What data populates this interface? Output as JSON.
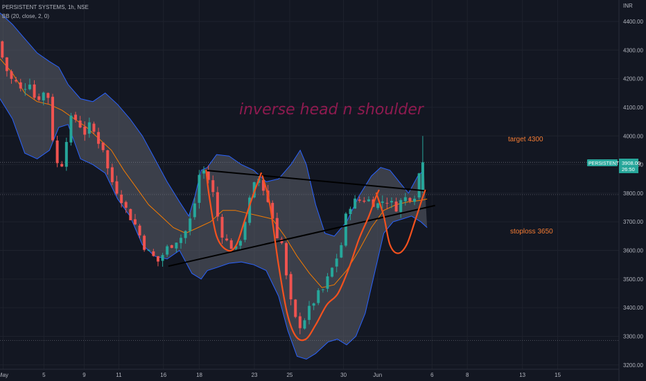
{
  "header": {
    "symbol_title": "PERSISTENT SYSTEMS, 1h, NSE",
    "indicator_title": "BB (20, close, 2, 0)"
  },
  "currency": "INR",
  "price_label": {
    "ticker": "PERSISTENT",
    "price": "3908.00",
    "countdown": "26:50"
  },
  "annotations": {
    "headline": "inverse head n shoulder",
    "target": "target 4300",
    "stoploss": "stoploss 3650"
  },
  "colors": {
    "background": "#131722",
    "up": "#26a69a",
    "down": "#ef5350",
    "bb_fill": "#5d606b",
    "bb_band": "#2962ff",
    "bb_basis": "#f57c00",
    "pattern": "#f4511e",
    "headline": "#8e1a4f",
    "annotation": "#f57c33",
    "trendline": "#000000"
  },
  "chart_data": {
    "type": "candlestick",
    "title": "PERSISTENT SYSTEMS, 1h, NSE",
    "indicator": "BB (20, close, 2, 0)",
    "y_unit": "INR",
    "ylim": [
      3185,
      4475
    ],
    "yticks": [
      3200,
      3300,
      3400,
      3500,
      3600,
      3700,
      3800,
      3900,
      4000,
      4100,
      4200,
      4300,
      4400
    ],
    "xlim": [
      0,
      100
    ],
    "xticks": [
      {
        "label": "May",
        "x": 0.5
      },
      {
        "label": "5",
        "x": 7.1
      },
      {
        "label": "9",
        "x": 13.6
      },
      {
        "label": "11",
        "x": 19.2
      },
      {
        "label": "16",
        "x": 26.4
      },
      {
        "label": "18",
        "x": 32.2
      },
      {
        "label": "23",
        "x": 41.1
      },
      {
        "label": "25",
        "x": 46.8
      },
      {
        "label": "30",
        "x": 55.5
      },
      {
        "label": "Jun",
        "x": 61.0
      },
      {
        "label": "6",
        "x": 69.8
      },
      {
        "label": "8",
        "x": 75.5
      },
      {
        "label": "13",
        "x": 84.4
      },
      {
        "label": "15",
        "x": 90.1
      }
    ],
    "grid": true,
    "close_keypoints": [
      [
        0,
        4330
      ],
      [
        1,
        4255
      ],
      [
        2,
        4200
      ],
      [
        3,
        4185
      ],
      [
        4,
        4150
      ],
      [
        5,
        4205
      ],
      [
        6,
        4130
      ],
      [
        7,
        4140
      ],
      [
        8,
        4165
      ],
      [
        9,
        3970
      ],
      [
        10,
        3860
      ],
      [
        11,
        3985
      ],
      [
        12,
        4070
      ],
      [
        13,
        4050
      ],
      [
        14,
        4010
      ],
      [
        15,
        4040
      ],
      [
        16,
        3990
      ],
      [
        17,
        3960
      ],
      [
        18,
        3860
      ],
      [
        19,
        3820
      ],
      [
        20,
        3780
      ],
      [
        21,
        3730
      ],
      [
        22,
        3700
      ],
      [
        23,
        3650
      ],
      [
        24,
        3600
      ],
      [
        25,
        3580
      ],
      [
        26,
        3560
      ],
      [
        27,
        3600
      ],
      [
        28,
        3620
      ],
      [
        29,
        3640
      ],
      [
        30,
        3650
      ],
      [
        31,
        3700
      ],
      [
        32,
        3780
      ],
      [
        32.8,
        3900
      ],
      [
        33.5,
        3870
      ],
      [
        34.5,
        3830
      ],
      [
        35.5,
        3720
      ],
      [
        36.5,
        3640
      ],
      [
        37.5,
        3620
      ],
      [
        38.5,
        3600
      ],
      [
        39.5,
        3660
      ],
      [
        40.5,
        3760
      ],
      [
        41.5,
        3830
      ],
      [
        42,
        3860
      ],
      [
        43,
        3810
      ],
      [
        44,
        3750
      ],
      [
        45,
        3660
      ],
      [
        46,
        3620
      ],
      [
        46.5,
        3520
      ],
      [
        47.5,
        3400
      ],
      [
        48.5,
        3330
      ],
      [
        49.5,
        3360
      ],
      [
        50.5,
        3400
      ],
      [
        51.5,
        3440
      ],
      [
        52.5,
        3460
      ],
      [
        53.5,
        3510
      ],
      [
        54.5,
        3560
      ],
      [
        55.5,
        3620
      ],
      [
        56.5,
        3750
      ],
      [
        57.5,
        3770
      ],
      [
        58.5,
        3775
      ],
      [
        59.5,
        3780
      ],
      [
        60.5,
        3770
      ],
      [
        61.5,
        3760
      ],
      [
        62.5,
        3780
      ],
      [
        63.5,
        3770
      ],
      [
        64,
        3740
      ],
      [
        65,
        3770
      ],
      [
        66,
        3785
      ],
      [
        67,
        3790
      ],
      [
        67.7,
        3800
      ],
      [
        68.3,
        3908
      ]
    ],
    "last_candle": {
      "x": 68.3,
      "open": 3810,
      "high": 4000,
      "low": 3800,
      "close": 3908
    },
    "bollinger": {
      "upper": [
        [
          0,
          4430
        ],
        [
          2,
          4390
        ],
        [
          4,
          4340
        ],
        [
          6,
          4290
        ],
        [
          8,
          4260
        ],
        [
          9.5,
          4240
        ],
        [
          11,
          4180
        ],
        [
          13,
          4130
        ],
        [
          15,
          4120
        ],
        [
          17,
          4150
        ],
        [
          19,
          4110
        ],
        [
          21,
          4060
        ],
        [
          23,
          4000
        ],
        [
          25,
          3920
        ],
        [
          27,
          3840
        ],
        [
          29,
          3770
        ],
        [
          30.5,
          3720
        ],
        [
          31.5,
          3790
        ],
        [
          32.5,
          3880
        ],
        [
          33.5,
          3890
        ],
        [
          35,
          3935
        ],
        [
          37,
          3930
        ],
        [
          39,
          3900
        ],
        [
          41,
          3880
        ],
        [
          43,
          3840
        ],
        [
          45,
          3850
        ],
        [
          47,
          3900
        ],
        [
          48.5,
          3950
        ],
        [
          49.5,
          3900
        ],
        [
          51,
          3760
        ],
        [
          52.5,
          3660
        ],
        [
          54,
          3650
        ],
        [
          56,
          3700
        ],
        [
          58,
          3790
        ],
        [
          60,
          3860
        ],
        [
          61.5,
          3890
        ],
        [
          63,
          3880
        ],
        [
          64.5,
          3840
        ],
        [
          66,
          3800
        ],
        [
          67.5,
          3860
        ],
        [
          68.5,
          3880
        ]
      ],
      "lower": [
        [
          0,
          4130
        ],
        [
          2,
          4060
        ],
        [
          4,
          3940
        ],
        [
          6,
          3920
        ],
        [
          8,
          3950
        ],
        [
          9.5,
          4030
        ],
        [
          11,
          4040
        ],
        [
          13,
          3920
        ],
        [
          15,
          3900
        ],
        [
          17,
          3870
        ],
        [
          19,
          3780
        ],
        [
          21,
          3720
        ],
        [
          23,
          3620
        ],
        [
          25,
          3580
        ],
        [
          27,
          3570
        ],
        [
          29,
          3600
        ],
        [
          31,
          3520
        ],
        [
          32.5,
          3500
        ],
        [
          33.5,
          3530
        ],
        [
          35,
          3540
        ],
        [
          37,
          3555
        ],
        [
          39,
          3560
        ],
        [
          41,
          3550
        ],
        [
          43,
          3530
        ],
        [
          45,
          3440
        ],
        [
          46.5,
          3320
        ],
        [
          48,
          3230
        ],
        [
          49.5,
          3220
        ],
        [
          51,
          3240
        ],
        [
          53,
          3280
        ],
        [
          54.5,
          3290
        ],
        [
          56,
          3270
        ],
        [
          57.5,
          3300
        ],
        [
          59,
          3380
        ],
        [
          60.5,
          3520
        ],
        [
          62,
          3660
        ],
        [
          63.5,
          3700
        ],
        [
          65,
          3710
        ],
        [
          66.5,
          3720
        ],
        [
          68,
          3700
        ],
        [
          69,
          3680
        ]
      ],
      "basis": [
        [
          0,
          4270
        ],
        [
          2,
          4220
        ],
        [
          4,
          4150
        ],
        [
          6,
          4120
        ],
        [
          8,
          4110
        ],
        [
          10,
          4090
        ],
        [
          12,
          4060
        ],
        [
          14,
          4030
        ],
        [
          16,
          3990
        ],
        [
          18,
          3950
        ],
        [
          20,
          3880
        ],
        [
          22,
          3820
        ],
        [
          24,
          3760
        ],
        [
          26,
          3720
        ],
        [
          28,
          3680
        ],
        [
          30,
          3660
        ],
        [
          32,
          3680
        ],
        [
          34,
          3700
        ],
        [
          36,
          3740
        ],
        [
          38,
          3740
        ],
        [
          40,
          3730
        ],
        [
          42,
          3720
        ],
        [
          44,
          3710
        ],
        [
          46,
          3650
        ],
        [
          48,
          3580
        ],
        [
          50,
          3520
        ],
        [
          52,
          3470
        ],
        [
          54,
          3480
        ],
        [
          56,
          3530
        ],
        [
          58,
          3600
        ],
        [
          60,
          3680
        ],
        [
          62,
          3740
        ],
        [
          64,
          3760
        ],
        [
          66,
          3770
        ],
        [
          68,
          3775
        ],
        [
          69,
          3780
        ]
      ]
    },
    "trendlines": [
      {
        "from": [
          33.2,
          3880
        ],
        "to": [
          69,
          3808
        ]
      },
      {
        "from": [
          27.2,
          3545
        ],
        "to": [
          70.3,
          3757
        ]
      }
    ],
    "horizontal_lines": [
      3908,
      3795,
      3285
    ],
    "pattern_curves": [
      [
        [
          33.3,
          3880
        ],
        [
          33.8,
          3790
        ],
        [
          35.0,
          3650
        ],
        [
          36.8,
          3600
        ],
        [
          38.2,
          3620
        ],
        [
          39.6,
          3710
        ],
        [
          41.0,
          3800
        ],
        [
          42.2,
          3870
        ]
      ],
      [
        [
          42.4,
          3860
        ],
        [
          43.6,
          3760
        ],
        [
          45.0,
          3550
        ],
        [
          46.4,
          3380
        ],
        [
          47.8,
          3300
        ],
        [
          49.4,
          3290
        ],
        [
          51.0,
          3340
        ],
        [
          52.8,
          3410
        ],
        [
          54.6,
          3450
        ],
        [
          56.4,
          3540
        ],
        [
          58.0,
          3640
        ],
        [
          59.6,
          3720
        ],
        [
          60.6,
          3780
        ],
        [
          61.2,
          3810
        ]
      ],
      [
        [
          60.8,
          3800
        ],
        [
          62.0,
          3720
        ],
        [
          63.0,
          3620
        ],
        [
          64.3,
          3590
        ],
        [
          65.7,
          3620
        ],
        [
          67.0,
          3700
        ],
        [
          68.2,
          3780
        ],
        [
          68.7,
          3810
        ]
      ]
    ]
  }
}
